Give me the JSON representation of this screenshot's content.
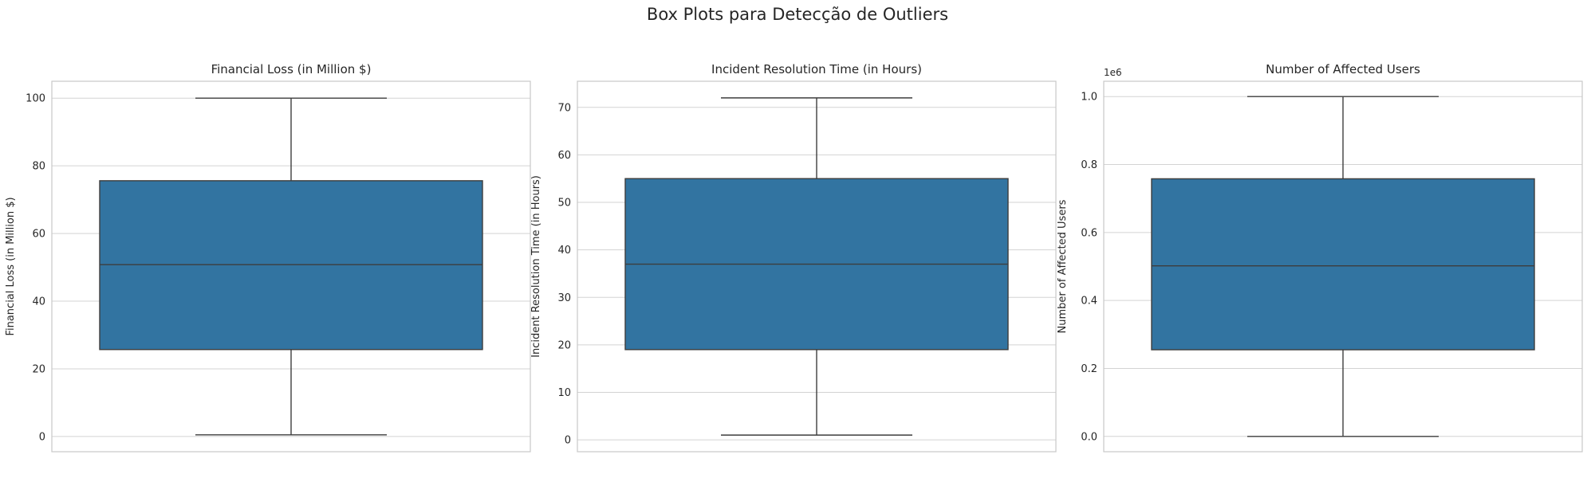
{
  "figure": {
    "title": "Box Plots para Detecção de Outliers"
  },
  "colors": {
    "box_fill": "#3274a1",
    "line": "#3d3d3d",
    "grid": "#d3d3d3",
    "frame": "#c8c8c8"
  },
  "chart_data": [
    {
      "type": "box",
      "title": "Financial Loss (in Million $)",
      "xlabel": "",
      "ylabel": "Financial Loss (in Million $)",
      "ylim": [
        -4.5,
        105
      ],
      "yticks": [
        0,
        20,
        40,
        60,
        80,
        100
      ],
      "ytick_labels": [
        "0",
        "20",
        "40",
        "60",
        "80",
        "100"
      ],
      "offset_label": "",
      "grid": true,
      "stats": {
        "whislo": 0.5,
        "q1": 25.7,
        "median": 50.8,
        "q3": 75.6,
        "whishi": 100
      }
    },
    {
      "type": "box",
      "title": "Incident Resolution Time (in Hours)",
      "xlabel": "",
      "ylabel": "Incident Resolution Time (in Hours)",
      "ylim": [
        -2.5,
        75.5
      ],
      "yticks": [
        0,
        10,
        20,
        30,
        40,
        50,
        60,
        70
      ],
      "ytick_labels": [
        "0",
        "10",
        "20",
        "30",
        "40",
        "50",
        "60",
        "70"
      ],
      "offset_label": "",
      "grid": true,
      "stats": {
        "whislo": 1,
        "q1": 19,
        "median": 37,
        "q3": 55,
        "whishi": 72
      }
    },
    {
      "type": "box",
      "title": "Number of Affected Users",
      "xlabel": "",
      "ylabel": "Number of Affected Users",
      "ylim": [
        -0.045,
        1.045
      ],
      "yticks": [
        0.0,
        0.2,
        0.4,
        0.6,
        0.8,
        1.0
      ],
      "ytick_labels": [
        "0.0",
        "0.2",
        "0.4",
        "0.6",
        "0.8",
        "1.0"
      ],
      "offset_label": "1e6",
      "grid": true,
      "stats": {
        "whislo": 0.0,
        "q1": 0.255,
        "median": 0.502,
        "q3": 0.758,
        "whishi": 1.0
      }
    }
  ]
}
